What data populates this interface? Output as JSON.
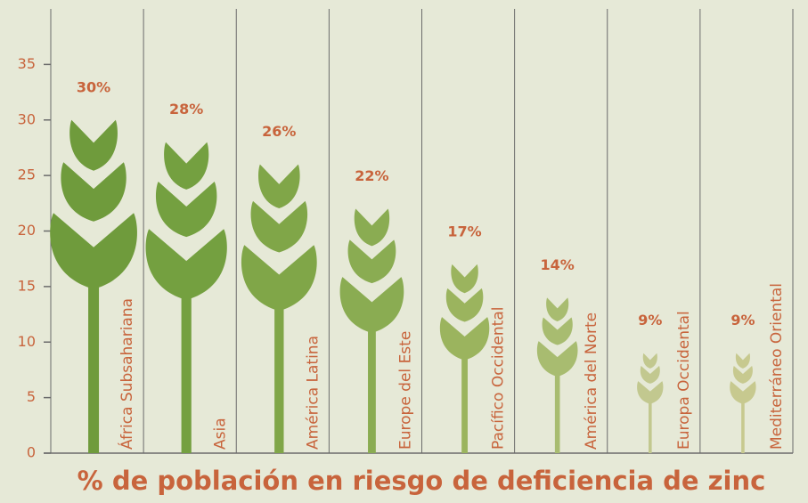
{
  "chart_data": {
    "type": "bar",
    "x_label": "% de población en riesgo de deficiencia de zinc",
    "categories": [
      "África Subsahariana",
      "Asia",
      "América Latina",
      "Europe del Este",
      "Pacífico Occidental",
      "América del Norte",
      "Europa Occidental",
      "Mediterráneo Oriental"
    ],
    "values": [
      30,
      28,
      26,
      22,
      17,
      14,
      9,
      9
    ],
    "value_labels": [
      "30%",
      "28%",
      "26%",
      "22%",
      "17%",
      "14%",
      "9%",
      "9%"
    ],
    "colors": [
      "#6f9b3c",
      "#74a040",
      "#80a648",
      "#8aac52",
      "#9bb45e",
      "#a8bc70",
      "#c2c88f",
      "#c7c98f"
    ],
    "ylim": [
      0,
      40
    ],
    "yticks": [
      0,
      5,
      10,
      15,
      20,
      25,
      30,
      35
    ]
  }
}
